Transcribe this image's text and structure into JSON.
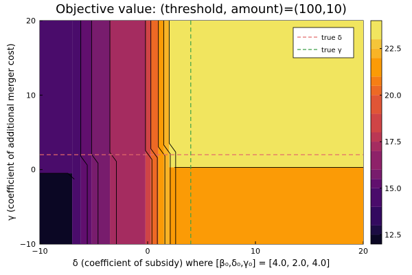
{
  "chart_data": {
    "type": "contour",
    "title": "Objective value: (threshold, amount)=(100,10)",
    "xlabel": "δ (coefficient of subsidy) where [β₀,δ₀,γ₀] = [4.0, 2.0, 4.0]",
    "ylabel": "γ (coefficient of additional merger cost)",
    "xlim": [
      -10,
      20
    ],
    "ylim": [
      -10,
      20
    ],
    "x_ticks": [
      -10,
      0,
      10,
      20
    ],
    "y_ticks": [
      -10,
      0,
      10,
      20
    ],
    "x_tick_labels": [
      "−10",
      "0",
      "10",
      "20"
    ],
    "y_tick_labels": [
      "−10",
      "0",
      "10",
      "20"
    ],
    "colorbar": {
      "range": [
        12,
        24
      ],
      "ticks": [
        12.5,
        15.0,
        17.5,
        20.0,
        22.5
      ],
      "tick_labels": [
        "12.5",
        "15.0",
        "17.5",
        "20.0",
        "22.5"
      ],
      "levels": [
        12,
        12.5,
        13,
        14,
        15,
        15.5,
        16,
        17,
        17.5,
        18,
        19,
        20,
        20.5,
        21,
        22,
        22.5,
        23,
        24
      ],
      "colors": [
        "#000004",
        "#0b0724",
        "#1c0c43",
        "#330a5f",
        "#4a0c6b",
        "#610f6e",
        "#781c6d",
        "#8e2269",
        "#a52c60",
        "#bb3754",
        "#cf4446",
        "#e05536",
        "#ed6925",
        "#f67e14",
        "#fb9b06",
        "#f9b426",
        "#f5c53a",
        "#f1e55f",
        "#fcffa4"
      ]
    },
    "regions": {
      "left_upper": {
        "x": [
          -10,
          -7
        ],
        "y_from": -0.5,
        "value": 14.8
      },
      "left_lower": {
        "x": [
          -10,
          -7
        ],
        "y_to": -0.5,
        "value": 12.2
      },
      "top_right": {
        "x": [
          2,
          20
        ],
        "y_from": 0.3,
        "value": 23.8
      },
      "bottom_right": {
        "x": [
          2,
          20
        ],
        "y_to": 0.3,
        "value": 21.7
      },
      "vertical_bands": [
        {
          "x": [
            -7,
            -6.2
          ],
          "value": 14.4
        },
        {
          "x": [
            -6.2,
            -5.2
          ],
          "value": 15.4
        },
        {
          "x": [
            -5.2,
            -3.5
          ],
          "value": 15.9
        },
        {
          "x": [
            -3.5,
            -0.2
          ],
          "value": 17.1
        },
        {
          "x": [
            -0.2,
            0.3
          ],
          "value": 18.8
        },
        {
          "x": [
            0.3,
            1.0
          ],
          "value": 20.3
        },
        {
          "x": [
            1.0,
            1.5
          ],
          "value": 21.2
        },
        {
          "x": [
            1.5,
            2.0
          ],
          "value": 22.2
        }
      ]
    },
    "reference_lines": [
      {
        "name": "true δ",
        "orientation": "horizontal",
        "value": 2,
        "color": "#e26a6a"
      },
      {
        "name": "true γ",
        "orientation": "vertical",
        "value": 4,
        "color": "#3da04a"
      }
    ],
    "legend": {
      "placement": "top-right",
      "entries": [
        "true δ",
        "true γ"
      ]
    }
  }
}
